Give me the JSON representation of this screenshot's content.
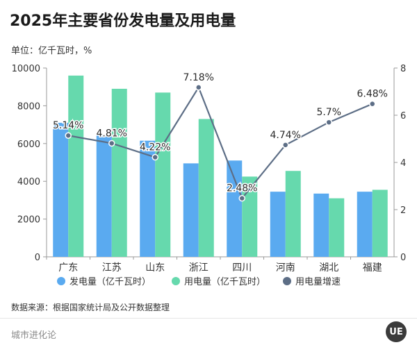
{
  "header": {
    "title": "2025年主要省份发电量及用电量",
    "unit": "单位：亿千瓦时，%"
  },
  "chart_data": {
    "type": "bar+line",
    "categories": [
      "广东",
      "江苏",
      "山东",
      "浙江",
      "四川",
      "河南",
      "湖北",
      "福建"
    ],
    "series": [
      {
        "name": "发电量（亿千瓦时）",
        "type": "bar",
        "axis": "left",
        "color": "#5aaaf0",
        "values": [
          7100,
          6450,
          6150,
          4950,
          5100,
          3450,
          3350,
          3450
        ]
      },
      {
        "name": "用电量（亿千瓦时）",
        "type": "bar",
        "axis": "left",
        "color": "#66d9ad",
        "values": [
          9600,
          8900,
          8700,
          7300,
          4250,
          4550,
          3100,
          3550
        ]
      },
      {
        "name": "用电量增速",
        "type": "line",
        "axis": "right",
        "color": "#5d6e86",
        "values": [
          5.14,
          4.81,
          4.22,
          7.18,
          2.48,
          4.74,
          5.7,
          6.48
        ],
        "labels": [
          "5.14%",
          "4.81%",
          "4.22%",
          "7.18%",
          "2.48%",
          "4.74%",
          "5.7%",
          "6.48%"
        ]
      }
    ],
    "y_left": {
      "min": 0,
      "max": 10000,
      "ticks": [
        "0",
        "2000",
        "4000",
        "6000",
        "8000",
        "10000"
      ],
      "tick_values": [
        0,
        2000,
        4000,
        6000,
        8000,
        10000
      ]
    },
    "y_right": {
      "min": 0,
      "max": 8,
      "ticks": [
        "0",
        "2",
        "4",
        "6",
        "8"
      ],
      "tick_values": [
        0,
        2,
        4,
        6,
        8
      ]
    },
    "legend_position": "bottom"
  },
  "footer": {
    "source": "数据来源：根据国家统计局及公开数据整理",
    "brand": "城市进化论"
  }
}
